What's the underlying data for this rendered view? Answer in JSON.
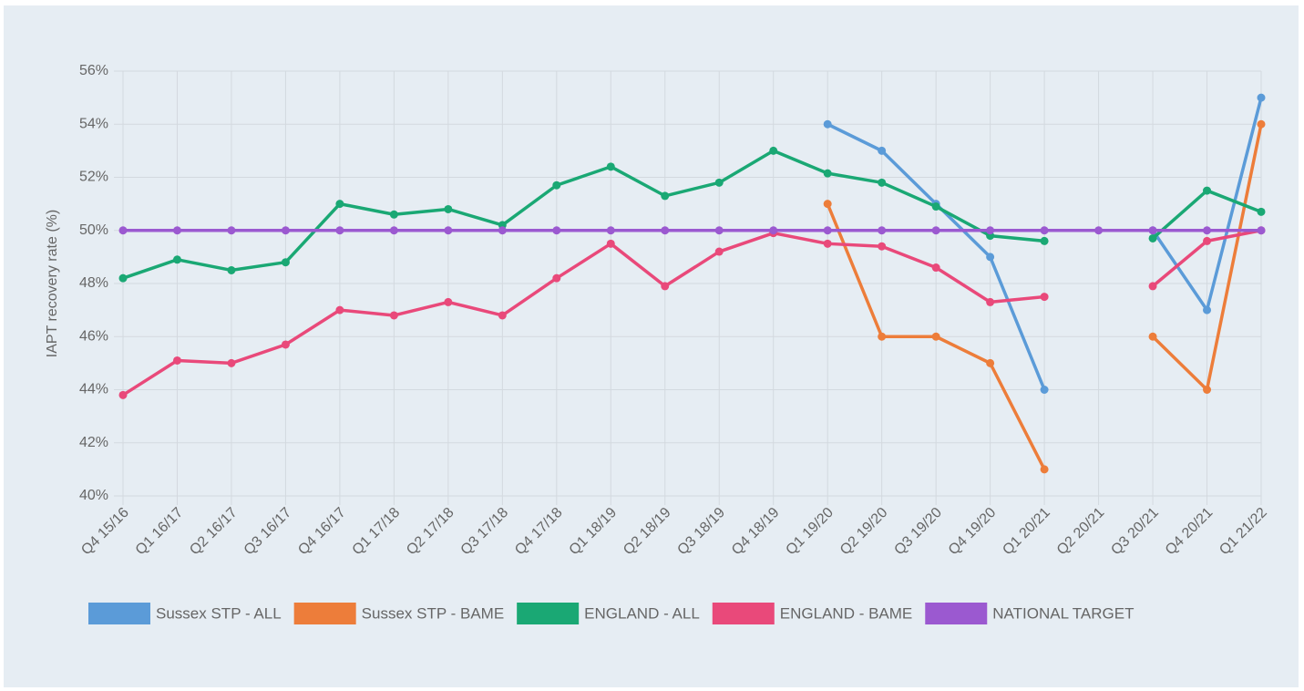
{
  "chart_data": {
    "type": "line",
    "y_label": "IAPT recovery rate (%)",
    "categories": [
      "Q4 15/16",
      "Q1 16/17",
      "Q2 16/17",
      "Q3 16/17",
      "Q4 16/17",
      "Q1 17/18",
      "Q2 17/18",
      "Q3 17/18",
      "Q4 17/18",
      "Q1 18/19",
      "Q2 18/19",
      "Q3 18/19",
      "Q4 18/19",
      "Q1 19/20",
      "Q2 19/20",
      "Q3 19/20",
      "Q4 19/20",
      "Q1 20/21",
      "Q2 20/21",
      "Q3 20/21",
      "Q4 20/21",
      "Q1 21/22"
    ],
    "series": [
      {
        "name": "Sussex STP - ALL",
        "color": "#5b9bd8",
        "values": [
          null,
          null,
          null,
          null,
          null,
          null,
          null,
          null,
          null,
          null,
          null,
          null,
          null,
          54,
          53,
          51,
          49,
          44,
          null,
          50,
          47,
          55
        ]
      },
      {
        "name": "Sussex STP - BAME",
        "color": "#ed7d3a",
        "values": [
          null,
          null,
          null,
          null,
          null,
          null,
          null,
          null,
          null,
          null,
          null,
          null,
          null,
          51,
          46,
          46,
          45,
          41,
          null,
          46,
          44,
          54
        ]
      },
      {
        "name": "ENGLAND - ALL",
        "color": "#1aa874",
        "values": [
          48.2,
          48.9,
          48.5,
          48.8,
          51.0,
          50.6,
          50.8,
          50.2,
          51.7,
          52.4,
          51.3,
          51.8,
          53.0,
          52.15,
          51.8,
          50.9,
          49.8,
          49.6,
          null,
          49.7,
          51.5,
          50.7
        ]
      },
      {
        "name": "ENGLAND - BAME",
        "color": "#e9497a",
        "values": [
          43.8,
          45.1,
          45.0,
          45.7,
          47.0,
          46.8,
          47.3,
          46.8,
          48.2,
          49.5,
          47.9,
          49.2,
          49.9,
          49.5,
          49.4,
          48.6,
          47.3,
          47.5,
          null,
          47.9,
          49.6,
          50.0
        ]
      },
      {
        "name": "NATIONAL TARGET",
        "color": "#9b59d0",
        "values": [
          50,
          50,
          50,
          50,
          50,
          50,
          50,
          50,
          50,
          50,
          50,
          50,
          50,
          50,
          50,
          50,
          50,
          50,
          50,
          50,
          50,
          50
        ]
      }
    ],
    "ylim": [
      40,
      56
    ],
    "yticks": [
      {
        "value": 40,
        "label": "40%"
      },
      {
        "value": 42,
        "label": "42%"
      },
      {
        "value": 44,
        "label": "44%"
      },
      {
        "value": 46,
        "label": "46%"
      },
      {
        "value": 48,
        "label": "48%"
      },
      {
        "value": 50,
        "label": "50%"
      },
      {
        "value": 52,
        "label": "52%"
      },
      {
        "value": 54,
        "label": "54%"
      },
      {
        "value": 56,
        "label": "56%"
      }
    ],
    "grid": true,
    "legend": "bottom"
  }
}
